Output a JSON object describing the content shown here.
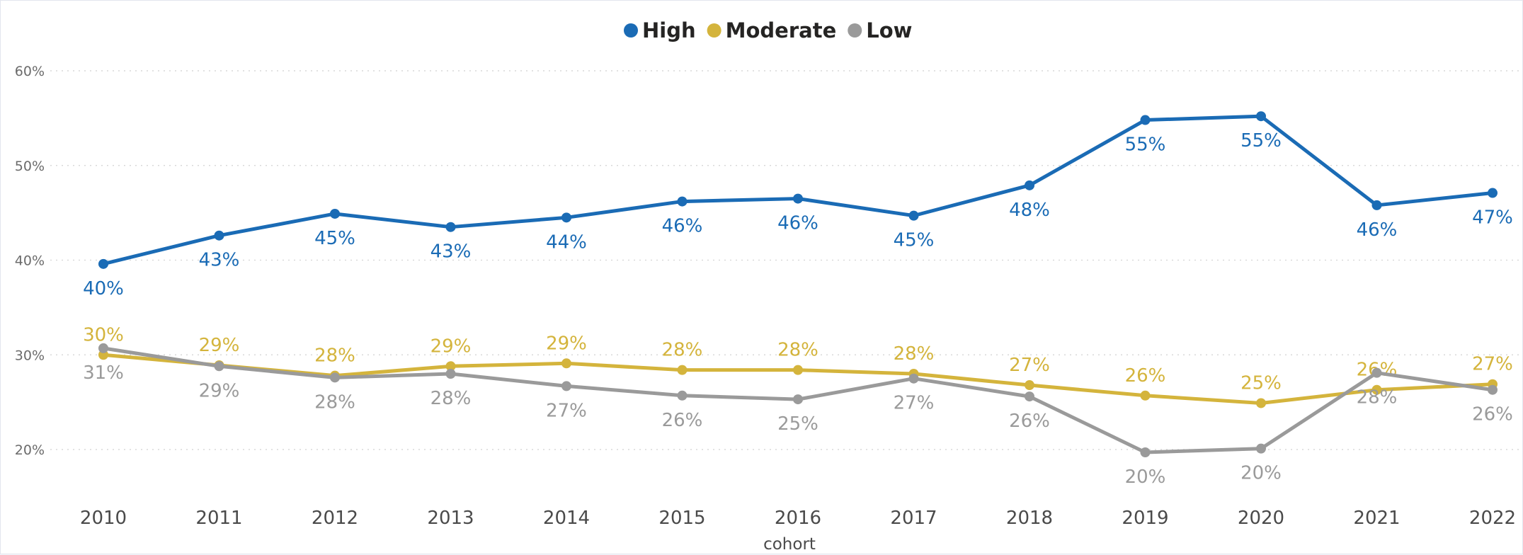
{
  "chart_data": {
    "type": "line",
    "title": "",
    "xlabel": "cohort",
    "ylabel": "",
    "ylim": [
      0.15,
      0.62
    ],
    "yticks": [
      0.2,
      0.3,
      0.4,
      0.5,
      0.6
    ],
    "ytick_labels": [
      "20%",
      "30%",
      "40%",
      "50%",
      "60%"
    ],
    "grid": true,
    "legend_position": "top-center",
    "categories": [
      "2010",
      "2011",
      "2012",
      "2013",
      "2014",
      "2015",
      "2016",
      "2017",
      "2018",
      "2019",
      "2020",
      "2021",
      "2022"
    ],
    "series": [
      {
        "name": "High",
        "color": "#1a6bb5",
        "values": [
          0.396,
          0.426,
          0.449,
          0.435,
          0.445,
          0.462,
          0.465,
          0.447,
          0.479,
          0.548,
          0.552,
          0.458,
          0.471
        ],
        "labels": [
          "40%",
          "43%",
          "45%",
          "43%",
          "44%",
          "46%",
          "46%",
          "45%",
          "48%",
          "55%",
          "55%",
          "46%",
          "47%"
        ],
        "label_positions": [
          "below",
          "below",
          "below",
          "below",
          "below",
          "below",
          "below",
          "below",
          "below",
          "below",
          "below",
          "below",
          "below"
        ]
      },
      {
        "name": "Moderate",
        "color": "#d4b43c",
        "values": [
          0.3,
          0.289,
          0.278,
          0.288,
          0.291,
          0.284,
          0.284,
          0.28,
          0.268,
          0.257,
          0.249,
          0.263,
          0.269
        ],
        "labels": [
          "30%",
          "29%",
          "28%",
          "29%",
          "29%",
          "28%",
          "28%",
          "28%",
          "27%",
          "26%",
          "25%",
          "26%",
          "27%"
        ],
        "label_positions": [
          "above",
          "above",
          "above",
          "above",
          "above",
          "above",
          "above",
          "above",
          "above",
          "above",
          "above",
          "above",
          "above"
        ]
      },
      {
        "name": "Low",
        "color": "#9a9a9a",
        "values": [
          0.307,
          0.288,
          0.276,
          0.28,
          0.267,
          0.257,
          0.253,
          0.275,
          0.256,
          0.197,
          0.201,
          0.281,
          0.263
        ],
        "labels": [
          "31%",
          "29%",
          "28%",
          "28%",
          "27%",
          "26%",
          "25%",
          "27%",
          "26%",
          "20%",
          "20%",
          "28%",
          "26%"
        ],
        "label_positions": [
          "below",
          "below",
          "below",
          "below",
          "below",
          "below",
          "below",
          "below",
          "below",
          "below",
          "below",
          "below",
          "below"
        ]
      }
    ]
  }
}
